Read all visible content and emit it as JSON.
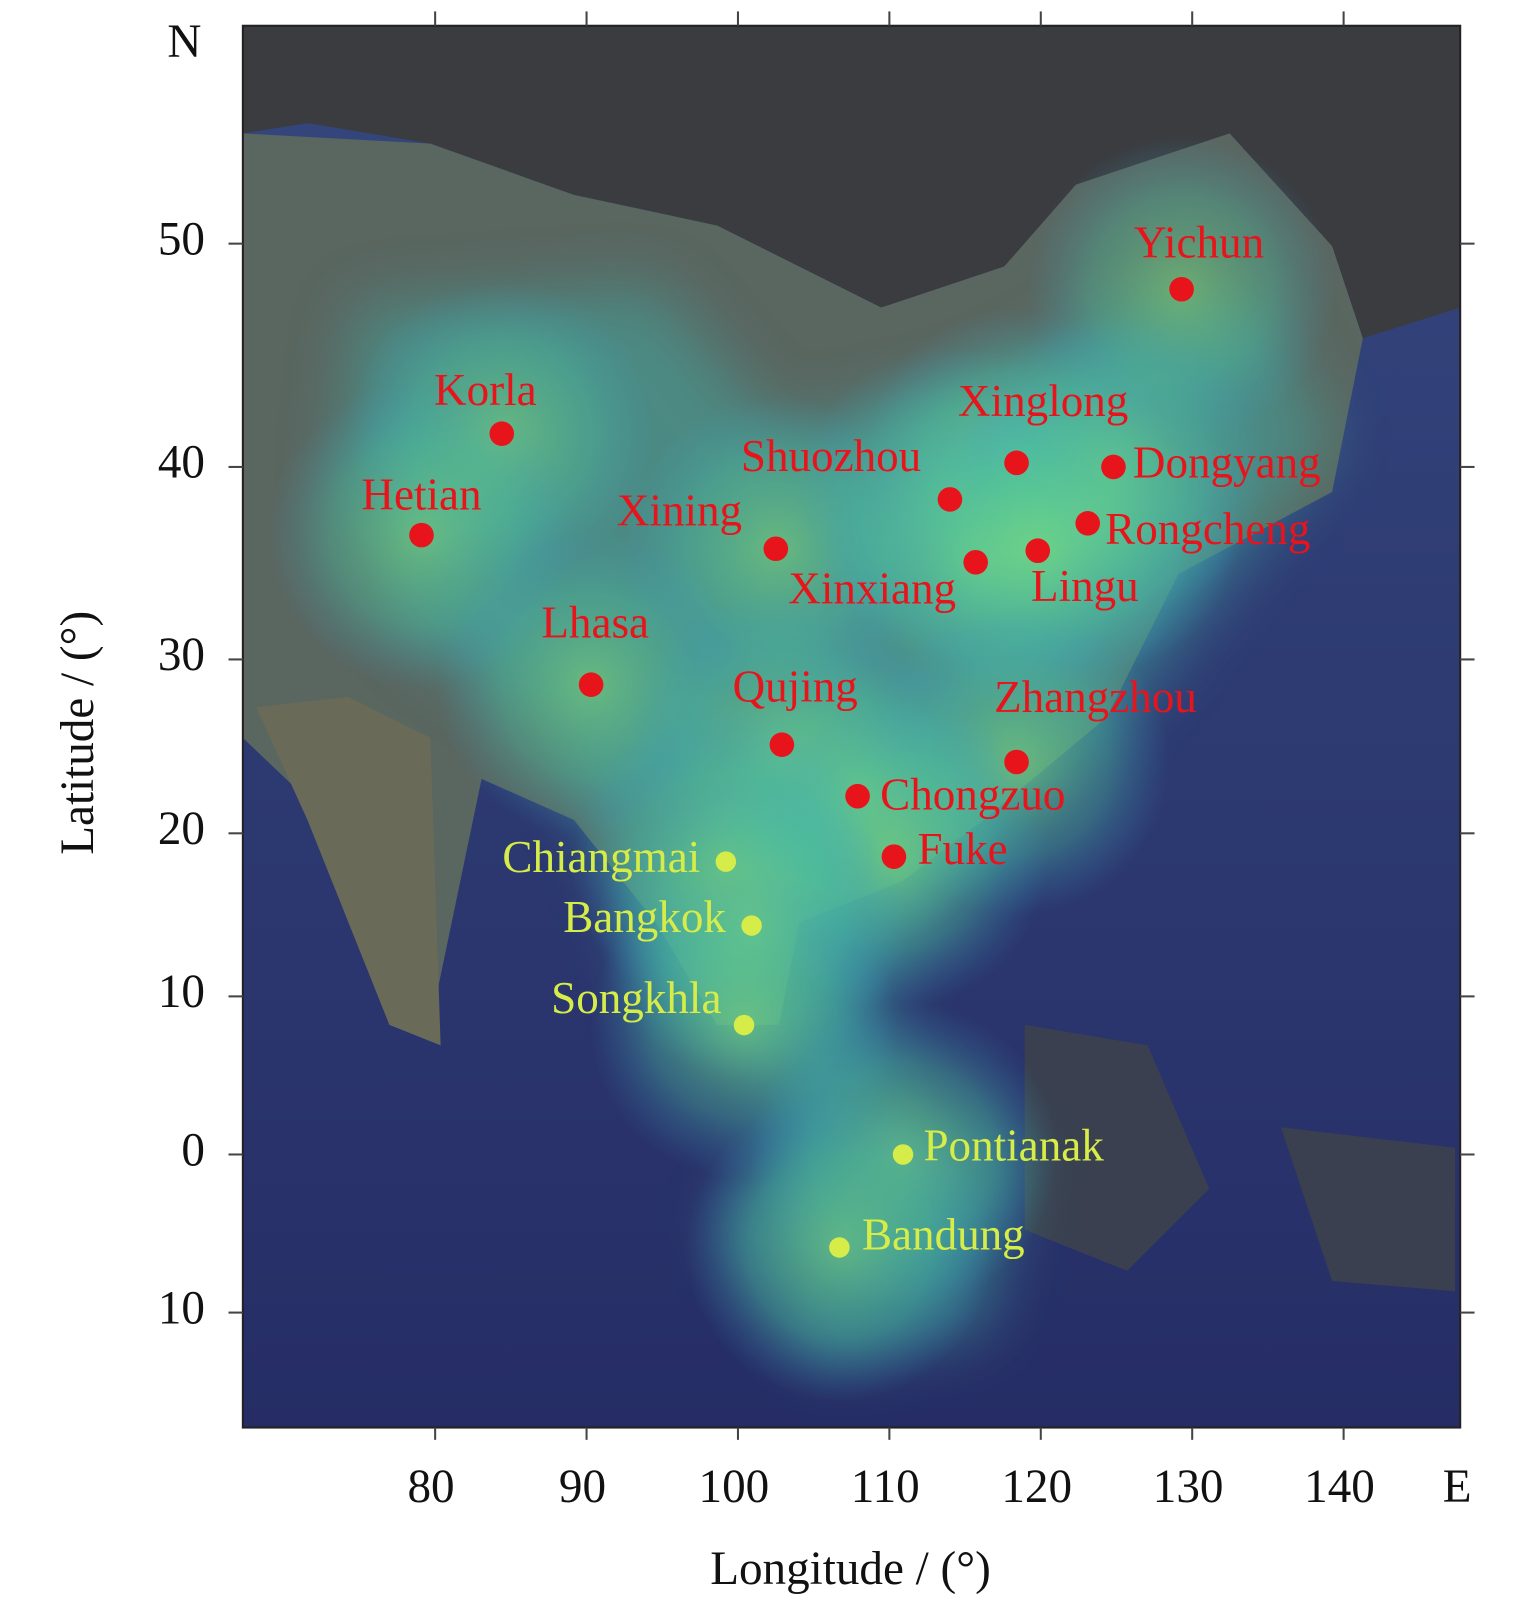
{
  "chart_data": {
    "type": "map",
    "projection": "mercator",
    "xlabel": "Longitude / (°)",
    "ylabel": "Latitude / (°)",
    "north_label": "N",
    "east_label": "E",
    "xlim": [
      67.3,
      147.7
    ],
    "ylim": [
      -17.1,
      58.1
    ],
    "xticks": [
      80,
      90,
      100,
      110,
      120,
      130,
      140
    ],
    "yticks": [
      {
        "value": -10,
        "label": "10"
      },
      0,
      10,
      20,
      30,
      40,
      50
    ],
    "groups": [
      {
        "color": "#e8141c",
        "stations": [
          {
            "label": "Yichun",
            "lon": 129.3,
            "lat": 48.1
          },
          {
            "label": "Korla",
            "lon": 84.4,
            "lat": 41.6
          },
          {
            "label": "Hetian",
            "lon": 79.1,
            "lat": 36.6
          },
          {
            "label": "Xining",
            "lon": 102.5,
            "lat": 35.9
          },
          {
            "label": "Shuozhou",
            "lon": 114.0,
            "lat": 38.4
          },
          {
            "label": "Xinglong",
            "lon": 118.4,
            "lat": 40.2
          },
          {
            "label": "Dongyang",
            "lon": 124.8,
            "lat": 40.0
          },
          {
            "label": "Rongcheng",
            "lon": 123.1,
            "lat": 37.2
          },
          {
            "label": "Xinxiang",
            "lon": 115.7,
            "lat": 35.2
          },
          {
            "label": "Lingu",
            "lon": 119.8,
            "lat": 35.8
          },
          {
            "label": "Lhasa",
            "lon": 90.3,
            "lat": 28.6
          },
          {
            "label": "Qujing",
            "lon": 102.9,
            "lat": 25.2
          },
          {
            "label": "Zhangzhou",
            "lon": 118.4,
            "lat": 24.2
          },
          {
            "label": "Chongzuo",
            "lon": 107.9,
            "lat": 22.2
          },
          {
            "label": "Fuke",
            "lon": 110.3,
            "lat": 18.6
          }
        ]
      },
      {
        "color": "#d6ec48",
        "stations": [
          {
            "label": "Chiangmai",
            "lon": 99.2,
            "lat": 18.3
          },
          {
            "label": "Bangkok",
            "lon": 100.9,
            "lat": 14.4
          },
          {
            "label": "Songkhla",
            "lon": 100.4,
            "lat": 8.2
          },
          {
            "label": "Pontianak",
            "lon": 110.9,
            "lat": 0.0
          },
          {
            "label": "Bandung",
            "lon": 106.7,
            "lat": -5.9
          }
        ]
      }
    ]
  }
}
